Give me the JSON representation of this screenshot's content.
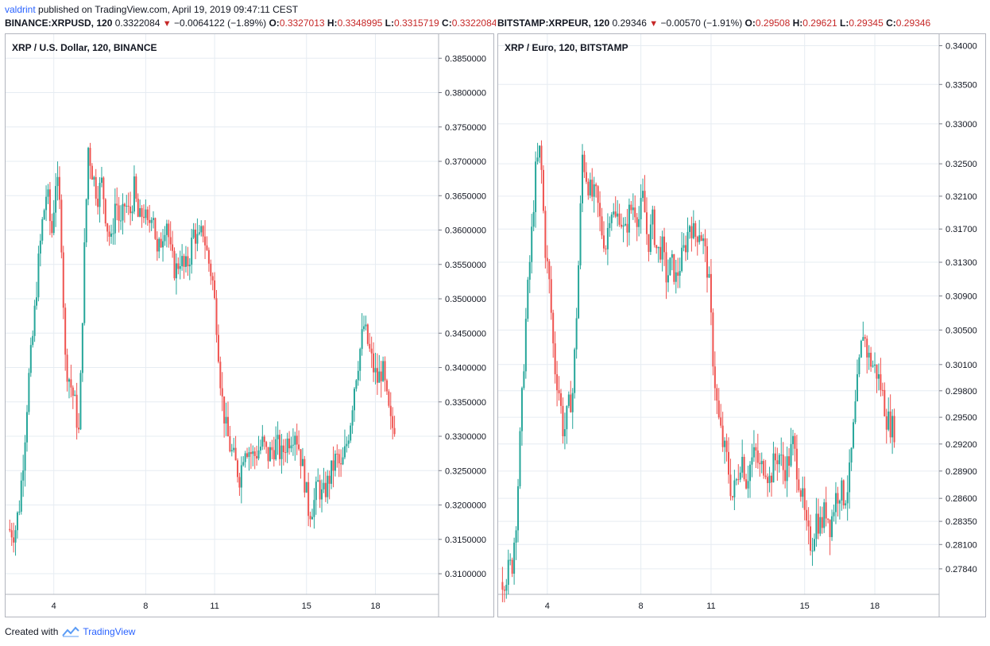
{
  "header": {
    "author": "valdrint",
    "published_text": "published on TradingView.com, April 19, 2019 09:47:11 CEST"
  },
  "quotes": [
    {
      "symbol": "BINANCE:XRPUSD, 120",
      "last": "0.3322084",
      "change": "−0.0064122 (−1.89%)",
      "o_label": "O:",
      "o": "0.3327013",
      "h_label": "H:",
      "h": "0.3348995",
      "l_label": "L:",
      "l": "0.3315719",
      "c_label": "C:",
      "c": "0.3322084"
    },
    {
      "symbol": "BITSTAMP:XRPEUR, 120",
      "last": "0.29346",
      "change": "−0.00570 (−1.91%)",
      "o_label": "O:",
      "o": "0.29508",
      "h_label": "H:",
      "h": "0.29621",
      "l_label": "L:",
      "l": "0.29345",
      "c_label": "C:",
      "c": "0.29346"
    }
  ],
  "footer": {
    "created_with": "Created with",
    "brand": "TradingView"
  },
  "colors": {
    "up": "#26a69a",
    "down": "#ef5350",
    "grid": "#e6ecf2",
    "axis_text": "#131722",
    "quote_red": "#c62828"
  },
  "chart_data": [
    {
      "type": "candlestick",
      "title": "XRP / U.S. Dollar, 120, BINANCE",
      "y_ticks": [
        "0.3850000",
        "0.3800000",
        "0.3750000",
        "0.3700000",
        "0.3650000",
        "0.3600000",
        "0.3550000",
        "0.3500000",
        "0.3450000",
        "0.3400000",
        "0.3350000",
        "0.3300000",
        "0.3250000",
        "0.3200000",
        "0.3150000",
        "0.3100000"
      ],
      "ylim": [
        0.307,
        0.3885
      ],
      "x_ticks": [
        {
          "label": "4",
          "day": 4
        },
        {
          "label": "8",
          "day": 8
        },
        {
          "label": "11",
          "day": 11
        },
        {
          "label": "15",
          "day": 15
        },
        {
          "label": "18",
          "day": 18
        }
      ],
      "xlim": [
        1.9,
        20.75
      ],
      "x_unit": "day of April 2019",
      "close_path": [
        [
          2.0,
          0.3165
        ],
        [
          2.3,
          0.316
        ],
        [
          2.5,
          0.32
        ],
        [
          2.7,
          0.328
        ],
        [
          2.9,
          0.338
        ],
        [
          3.1,
          0.345
        ],
        [
          3.3,
          0.354
        ],
        [
          3.5,
          0.361
        ],
        [
          3.7,
          0.366
        ],
        [
          3.9,
          0.359
        ],
        [
          4.1,
          0.368
        ],
        [
          4.3,
          0.362
        ],
        [
          4.5,
          0.341
        ],
        [
          4.7,
          0.338
        ],
        [
          4.9,
          0.335
        ],
        [
          5.1,
          0.33
        ],
        [
          5.3,
          0.354
        ],
        [
          5.5,
          0.372
        ],
        [
          5.7,
          0.368
        ],
        [
          5.9,
          0.365
        ],
        [
          6.1,
          0.367
        ],
        [
          6.3,
          0.361
        ],
        [
          6.5,
          0.358
        ],
        [
          6.7,
          0.365
        ],
        [
          6.9,
          0.36
        ],
        [
          7.1,
          0.364
        ],
        [
          7.3,
          0.362
        ],
        [
          7.5,
          0.366
        ],
        [
          7.7,
          0.361
        ],
        [
          7.9,
          0.363
        ],
        [
          8.1,
          0.36
        ],
        [
          8.3,
          0.364
        ],
        [
          8.5,
          0.356
        ],
        [
          8.7,
          0.359
        ],
        [
          8.9,
          0.362
        ],
        [
          9.1,
          0.356
        ],
        [
          9.3,
          0.354
        ],
        [
          9.5,
          0.356
        ],
        [
          9.7,
          0.354
        ],
        [
          9.9,
          0.356
        ],
        [
          10.1,
          0.36
        ],
        [
          10.3,
          0.358
        ],
        [
          10.5,
          0.36
        ],
        [
          10.7,
          0.356
        ],
        [
          10.9,
          0.353
        ],
        [
          11.1,
          0.346
        ],
        [
          11.3,
          0.336
        ],
        [
          11.5,
          0.331
        ],
        [
          11.7,
          0.328
        ],
        [
          11.9,
          0.326
        ],
        [
          12.1,
          0.324
        ],
        [
          12.3,
          0.329
        ],
        [
          12.5,
          0.328
        ],
        [
          12.7,
          0.327
        ],
        [
          12.9,
          0.328
        ],
        [
          13.1,
          0.329
        ],
        [
          13.3,
          0.327
        ],
        [
          13.5,
          0.328
        ],
        [
          13.7,
          0.329
        ],
        [
          13.9,
          0.327
        ],
        [
          14.1,
          0.329
        ],
        [
          14.3,
          0.33
        ],
        [
          14.5,
          0.331
        ],
        [
          14.7,
          0.328
        ],
        [
          14.9,
          0.324
        ],
        [
          15.1,
          0.319
        ],
        [
          15.3,
          0.32
        ],
        [
          15.5,
          0.323
        ],
        [
          15.7,
          0.321
        ],
        [
          15.9,
          0.323
        ],
        [
          16.1,
          0.325
        ],
        [
          16.3,
          0.327
        ],
        [
          16.5,
          0.325
        ],
        [
          16.7,
          0.328
        ],
        [
          16.9,
          0.332
        ],
        [
          17.1,
          0.338
        ],
        [
          17.3,
          0.342
        ],
        [
          17.5,
          0.346
        ],
        [
          17.7,
          0.343
        ],
        [
          17.9,
          0.34
        ],
        [
          18.1,
          0.338
        ],
        [
          18.3,
          0.34
        ],
        [
          18.5,
          0.335
        ],
        [
          18.7,
          0.331
        ],
        [
          18.9,
          0.3322
        ]
      ]
    },
    {
      "type": "candlestick",
      "title": "XRP / Euro, 120, BITSTAMP",
      "y_ticks": [
        "0.34000",
        "0.33500",
        "0.33000",
        "0.32500",
        "0.32100",
        "0.31700",
        "0.31300",
        "0.30900",
        "0.30500",
        "0.30100",
        "0.29800",
        "0.29500",
        "0.29200",
        "0.28900",
        "0.28600",
        "0.28350",
        "0.28100",
        "0.27840"
      ],
      "y_scale": "log",
      "ylim": [
        0.2757,
        0.3415
      ],
      "x_ticks": [
        {
          "label": "4",
          "day": 4
        },
        {
          "label": "8",
          "day": 8
        },
        {
          "label": "11",
          "day": 11
        },
        {
          "label": "15",
          "day": 15
        },
        {
          "label": "18",
          "day": 18
        }
      ],
      "xlim": [
        1.9,
        20.75
      ],
      "x_unit": "day of April 2019",
      "close_path": [
        [
          2.0,
          0.277
        ],
        [
          2.3,
          0.278
        ],
        [
          2.5,
          0.279
        ],
        [
          2.7,
          0.285
        ],
        [
          2.9,
          0.296
        ],
        [
          3.1,
          0.307
        ],
        [
          3.3,
          0.315
        ],
        [
          3.5,
          0.324
        ],
        [
          3.7,
          0.327
        ],
        [
          3.9,
          0.315
        ],
        [
          4.1,
          0.31
        ],
        [
          4.3,
          0.301
        ],
        [
          4.5,
          0.298
        ],
        [
          4.7,
          0.293
        ],
        [
          4.9,
          0.296
        ],
        [
          5.1,
          0.298
        ],
        [
          5.3,
          0.31
        ],
        [
          5.5,
          0.326
        ],
        [
          5.7,
          0.323
        ],
        [
          5.9,
          0.321
        ],
        [
          6.1,
          0.321
        ],
        [
          6.3,
          0.317
        ],
        [
          6.5,
          0.315
        ],
        [
          6.7,
          0.32
        ],
        [
          6.9,
          0.318
        ],
        [
          7.1,
          0.319
        ],
        [
          7.3,
          0.316
        ],
        [
          7.5,
          0.319
        ],
        [
          7.7,
          0.32
        ],
        [
          7.9,
          0.318
        ],
        [
          8.1,
          0.321
        ],
        [
          8.3,
          0.315
        ],
        [
          8.5,
          0.318
        ],
        [
          8.7,
          0.314
        ],
        [
          8.9,
          0.315
        ],
        [
          9.1,
          0.311
        ],
        [
          9.3,
          0.313
        ],
        [
          9.5,
          0.311
        ],
        [
          9.7,
          0.313
        ],
        [
          9.9,
          0.315
        ],
        [
          10.1,
          0.318
        ],
        [
          10.3,
          0.316
        ],
        [
          10.5,
          0.317
        ],
        [
          10.7,
          0.315
        ],
        [
          10.9,
          0.311
        ],
        [
          11.1,
          0.301
        ],
        [
          11.3,
          0.295
        ],
        [
          11.5,
          0.292
        ],
        [
          11.7,
          0.29
        ],
        [
          11.9,
          0.286
        ],
        [
          12.1,
          0.288
        ],
        [
          12.3,
          0.291
        ],
        [
          12.5,
          0.288
        ],
        [
          12.7,
          0.29
        ],
        [
          12.9,
          0.291
        ],
        [
          13.1,
          0.289
        ],
        [
          13.3,
          0.29
        ],
        [
          13.5,
          0.288
        ],
        [
          13.7,
          0.29
        ],
        [
          13.9,
          0.291
        ],
        [
          14.1,
          0.289
        ],
        [
          14.3,
          0.29
        ],
        [
          14.5,
          0.292
        ],
        [
          14.7,
          0.289
        ],
        [
          14.9,
          0.286
        ],
        [
          15.1,
          0.282
        ],
        [
          15.3,
          0.281
        ],
        [
          15.5,
          0.284
        ],
        [
          15.7,
          0.283
        ],
        [
          15.9,
          0.285
        ],
        [
          16.1,
          0.283
        ],
        [
          16.3,
          0.286
        ],
        [
          16.5,
          0.287
        ],
        [
          16.7,
          0.286
        ],
        [
          16.9,
          0.288
        ],
        [
          17.1,
          0.294
        ],
        [
          17.3,
          0.3
        ],
        [
          17.5,
          0.305
        ],
        [
          17.7,
          0.302
        ],
        [
          17.9,
          0.301
        ],
        [
          18.1,
          0.3
        ],
        [
          18.3,
          0.298
        ],
        [
          18.5,
          0.295
        ],
        [
          18.7,
          0.294
        ],
        [
          18.9,
          0.2935
        ]
      ]
    }
  ]
}
